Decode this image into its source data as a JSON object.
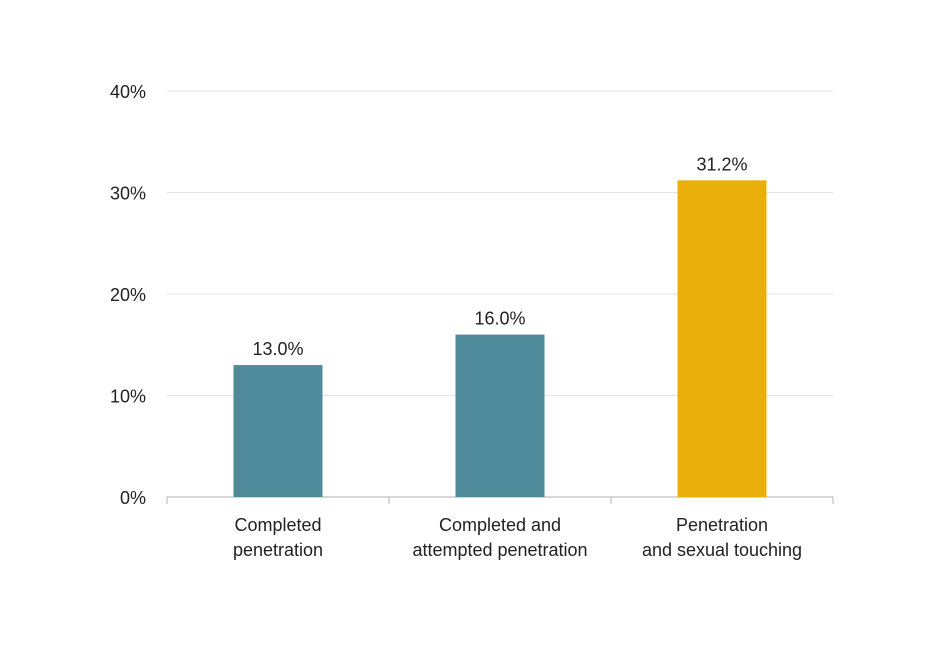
{
  "chart_data": {
    "type": "bar",
    "title": "",
    "xlabel": "",
    "ylabel": "",
    "categories": [
      [
        "Completed",
        "penetration"
      ],
      [
        "Completed and",
        "attempted penetration"
      ],
      [
        "Penetration",
        "and sexual touching"
      ]
    ],
    "values": [
      13.0,
      16.0,
      31.2
    ],
    "data_labels": [
      "13.0%",
      "16.0%",
      "31.2%"
    ],
    "colors": [
      "#4F8A9B",
      "#4F8A9B",
      "#EBAF0C"
    ],
    "ylim": [
      0,
      40
    ],
    "yticks": [
      0,
      10,
      20,
      30,
      40
    ],
    "ytick_labels": [
      "0%",
      "10%",
      "20%",
      "30%",
      "40%"
    ],
    "grid": true,
    "legend": "none"
  }
}
